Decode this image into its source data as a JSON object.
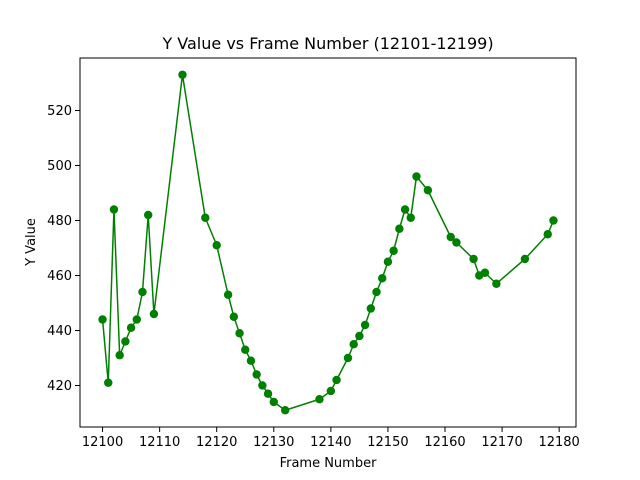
{
  "chart_data": {
    "type": "line",
    "title": "Y Value vs Frame Number (12101-12199)",
    "xlabel": "Frame Number",
    "ylabel": "Y Value",
    "xlim": [
      12096.05,
      12182.95
    ],
    "ylim": [
      404.9,
      539.1
    ],
    "xticks": [
      12100,
      12110,
      12120,
      12130,
      12140,
      12150,
      12160,
      12170,
      12180
    ],
    "yticks": [
      420,
      440,
      460,
      480,
      500,
      520
    ],
    "grid": false,
    "series_color": "#008000",
    "series": [
      {
        "marker": "circle",
        "x": [
          12100,
          12101,
          12102,
          12103,
          12104,
          12105,
          12106,
          12107,
          12108,
          12109,
          12114,
          12118,
          12120,
          12122,
          12123,
          12124,
          12125,
          12126,
          12127,
          12128,
          12129,
          12130,
          12132,
          12138,
          12140,
          12141,
          12143,
          12144,
          12145,
          12146,
          12147,
          12148,
          12149,
          12150,
          12151,
          12152,
          12153,
          12154,
          12155,
          12157,
          12161,
          12162,
          12165,
          12166,
          12167,
          12169,
          12174,
          12178,
          12179
        ],
        "y": [
          444,
          421,
          484,
          431,
          436,
          441,
          444,
          454,
          482,
          446,
          533,
          481,
          471,
          453,
          445,
          439,
          433,
          429,
          424,
          420,
          417,
          414,
          411,
          415,
          418,
          422,
          430,
          435,
          438,
          442,
          448,
          454,
          459,
          465,
          469,
          477,
          484,
          481,
          496,
          491,
          474,
          472,
          466,
          460,
          461,
          457,
          466,
          475,
          480
        ]
      }
    ]
  }
}
